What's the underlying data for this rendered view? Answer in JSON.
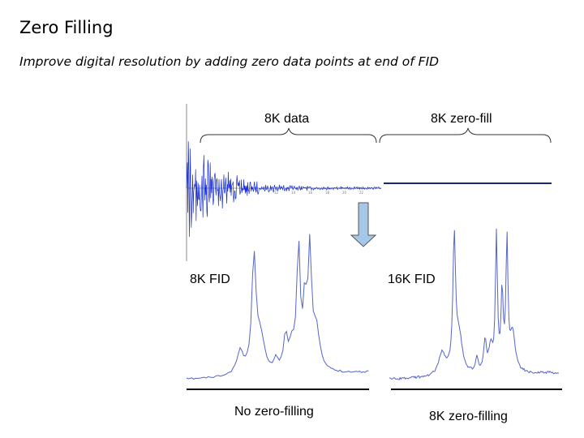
{
  "slide": {
    "title": "Zero Filling",
    "subtitle": "Improve digital resolution by adding zero data points at end of FID"
  },
  "top_panel": {
    "left_brace_label": "8K data",
    "right_brace_label": "8K zero-fill",
    "fid_color": "#1a2fd0",
    "zero_line_color": "#1a2580",
    "tick_labels": [
      "12",
      "14",
      "16",
      "18",
      "20",
      "22"
    ]
  },
  "arrow": {
    "fill": "#a6c8e8",
    "stroke": "#555555"
  },
  "bottom_panel": {
    "left_spectrum_label": "8K FID",
    "right_spectrum_label": "16K FID",
    "left_caption": "No zero-filling",
    "right_caption": "8K zero-filling",
    "spectrum_color": "#5565c8"
  }
}
